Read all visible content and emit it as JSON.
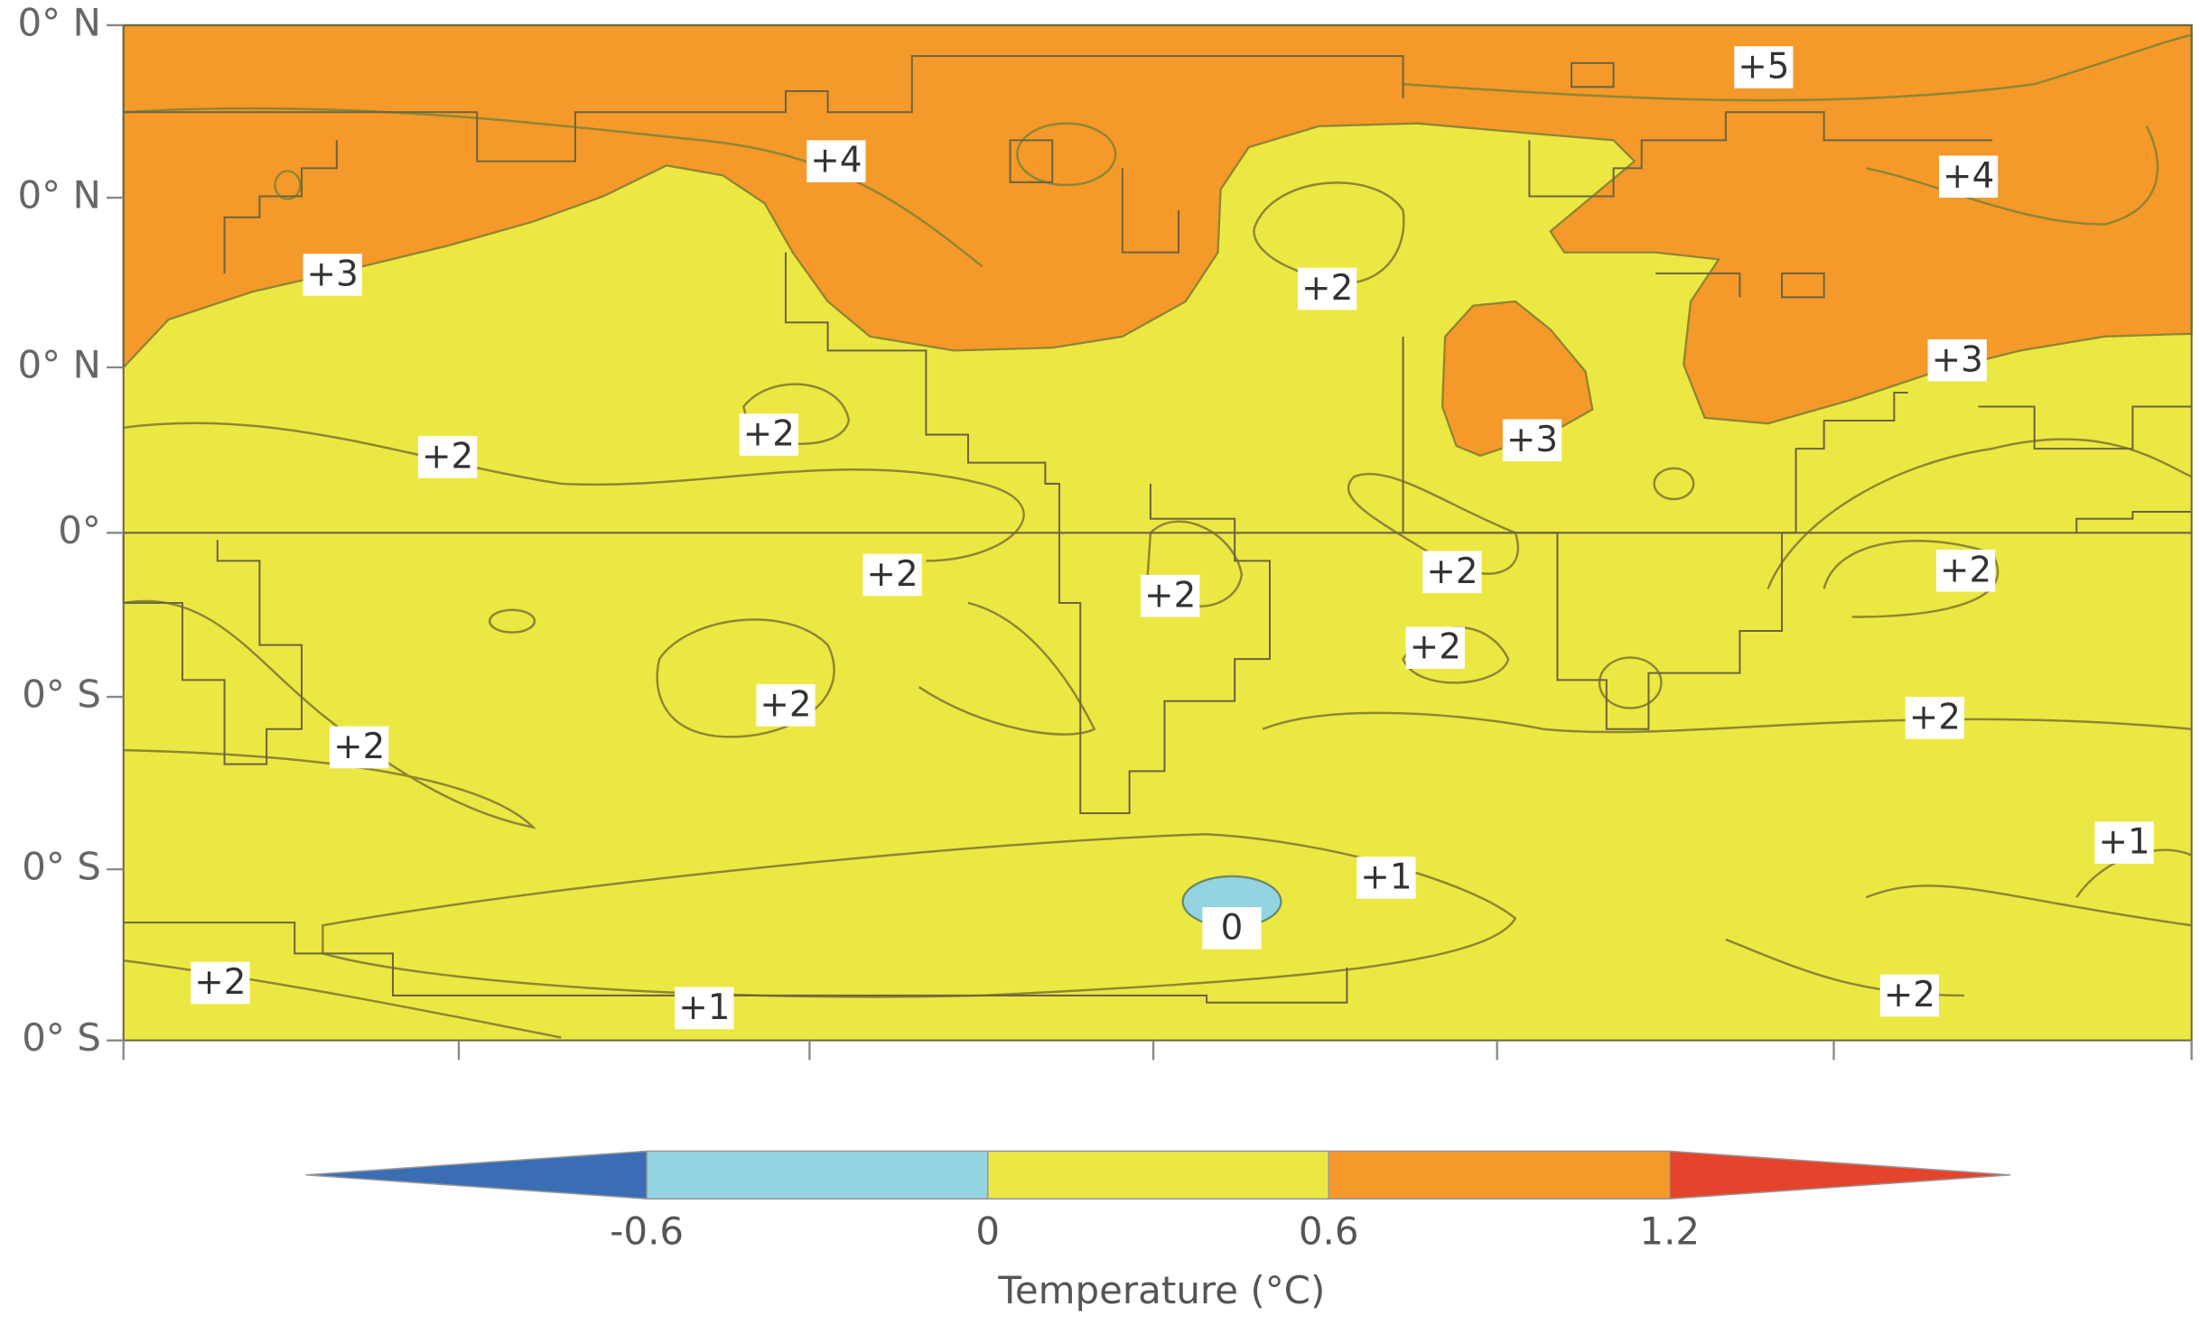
{
  "map": {
    "y_labels": [
      "0° N",
      "0° N",
      "0° N",
      "0°",
      "0° S",
      "0° S",
      "0° S"
    ],
    "contour_labels": [
      "+5",
      "+4",
      "+4",
      "+3",
      "+2",
      "+3",
      "+2",
      "+2",
      "+3",
      "+2",
      "+2",
      "+2",
      "+2",
      "+2",
      "+2",
      "+2",
      "+2",
      "+1",
      "+1",
      "0",
      "+2",
      "+1",
      "+2"
    ],
    "colorbar": {
      "label": "Temperature (°C)",
      "lim": [
        -1.2,
        1.8
      ],
      "bounds": [
        -0.6,
        0,
        0.6,
        1.2
      ],
      "ticks": [
        -0.6,
        0,
        0.6,
        1.2
      ],
      "colors": [
        "#3a6db3",
        "#94d4e0",
        "#ece843",
        "#f5992a",
        "#e5432b"
      ]
    }
  }
}
